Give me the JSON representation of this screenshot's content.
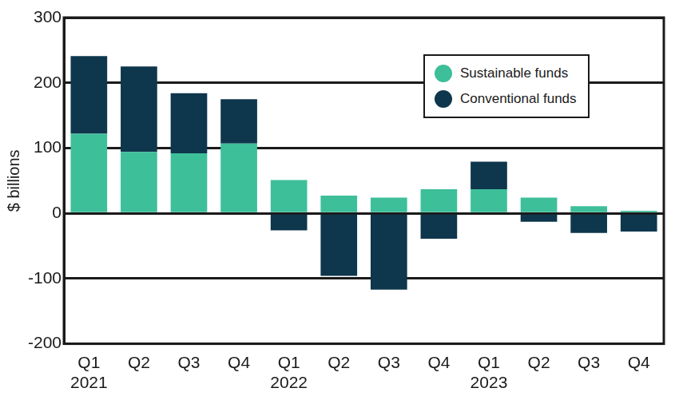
{
  "chart_data": {
    "type": "bar",
    "stacked": true,
    "grid": true,
    "legend": "upper right",
    "y_label": "$ billions",
    "categories": [
      [
        "Q1",
        "2021"
      ],
      [
        "Q2"
      ],
      [
        "Q3"
      ],
      [
        "Q4"
      ],
      [
        "Q1",
        "2022"
      ],
      [
        "Q2"
      ],
      [
        "Q3"
      ],
      [
        "Q4"
      ],
      [
        "Q1",
        "2023"
      ],
      [
        "Q2"
      ],
      [
        "Q3"
      ],
      [
        "Q4"
      ]
    ],
    "ylim": [
      -200,
      300
    ],
    "yticks": [
      -200,
      -100,
      0,
      100,
      200,
      300
    ],
    "series": [
      {
        "name": "Sustainable funds",
        "color": "#3dbf9a",
        "values": [
          122,
          94,
          92,
          107,
          51,
          27,
          24,
          37,
          37,
          24,
          11,
          4
        ]
      },
      {
        "name": "Conventional funds",
        "color": "#0e364c",
        "values": [
          119,
          131,
          92,
          68,
          -26,
          -96,
          -117,
          -39,
          42,
          -13,
          -30,
          -28
        ]
      }
    ]
  }
}
